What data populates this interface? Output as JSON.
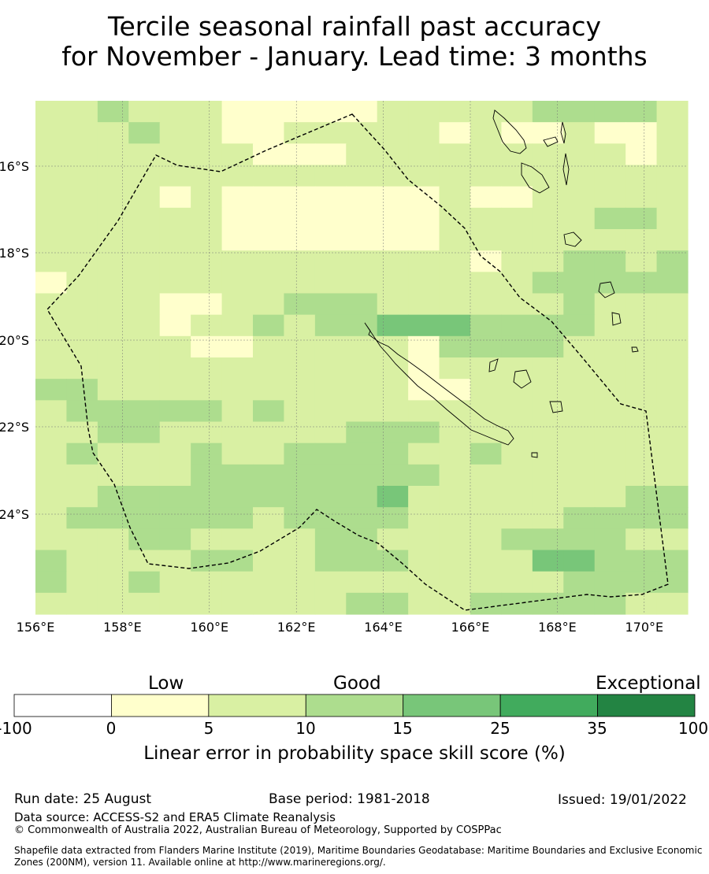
{
  "title": {
    "line1": "Tercile seasonal rainfall past accuracy",
    "line2": "for November - January. Lead time: 3 months"
  },
  "map": {
    "lon_range": [
      156,
      171
    ],
    "lat_range": [
      -26.3,
      -14.5
    ],
    "lon_ticks": [
      "156°E",
      "158°E",
      "160°E",
      "162°E",
      "164°E",
      "166°E",
      "168°E",
      "170°E"
    ],
    "lat_ticks": [
      "16°S",
      "18°S",
      "20°S",
      "22°S",
      "24°S"
    ],
    "gridlines": true,
    "layers": [
      "skill-score-grid",
      "coastlines",
      "eez-boundary"
    ]
  },
  "colorbar": {
    "categories": [
      "Low",
      "Good",
      "Exceptional"
    ],
    "boundaries": [
      "-100",
      "0",
      "5",
      "10",
      "15",
      "25",
      "35",
      "100"
    ],
    "colors": [
      "#ffffff",
      "#ffffcc",
      "#d9f0a3",
      "#addd8e",
      "#78c679",
      "#41ab5d",
      "#238443"
    ],
    "label": "Linear error in probability space skill score (%)"
  },
  "footer": {
    "run_date": "Run date: 25 August",
    "base_period": "Base period: 1981-2018",
    "issued": "Issued: 19/01/2022",
    "data_source": "Data source: ACCESS-S2 and ERA5 Climate Reanalysis",
    "copyright": "© Commonwealth of Australia 2022, Australian Bureau of Meteorology, Supported by COSPPac",
    "shapefile_line1": "Shapefile data extracted from Flanders Marine Institute (2019), Maritime Boundaries Geodatabase: Maritime Boundaries and Exclusive Economic",
    "shapefile_line2": "Zones (200NM), version 11. Available online at http://www.marineregions.org/."
  }
}
